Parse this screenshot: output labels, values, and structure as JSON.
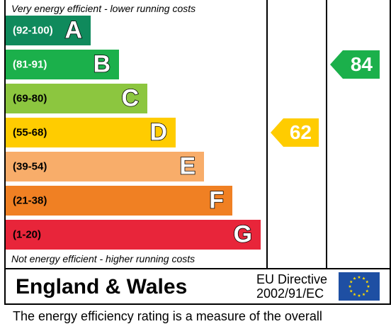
{
  "chart_data": {
    "type": "bar",
    "top_note": "Very energy efficient - lower running costs",
    "bottom_note": "Not energy efficient - higher running costs",
    "bands": [
      {
        "letter": "A",
        "range": "(92-100)",
        "color": "#0f8a5c",
        "range_color": "#ffffff"
      },
      {
        "letter": "B",
        "range": "(81-91)",
        "color": "#1bb04b",
        "range_color": "#ffffff"
      },
      {
        "letter": "C",
        "range": "(69-80)",
        "color": "#8cc63f",
        "range_color": "#000000"
      },
      {
        "letter": "D",
        "range": "(55-68)",
        "color": "#ffcc00",
        "range_color": "#000000"
      },
      {
        "letter": "E",
        "range": "(39-54)",
        "color": "#f8ad6a",
        "range_color": "#000000"
      },
      {
        "letter": "F",
        "range": "(21-38)",
        "color": "#f08023",
        "range_color": "#000000"
      },
      {
        "letter": "G",
        "range": "(1-20)",
        "color": "#e8253a",
        "range_color": "#000000"
      }
    ],
    "current": {
      "value": 62,
      "band": "D",
      "color": "#ffcc00"
    },
    "potential": {
      "value": 84,
      "band": "B",
      "color": "#1bb04b"
    }
  },
  "footer": {
    "region": "England & Wales",
    "directive_line1": "EU Directive",
    "directive_line2": "2002/91/EC"
  },
  "bottom_text": "The energy efficiency rating is a measure of the overall"
}
